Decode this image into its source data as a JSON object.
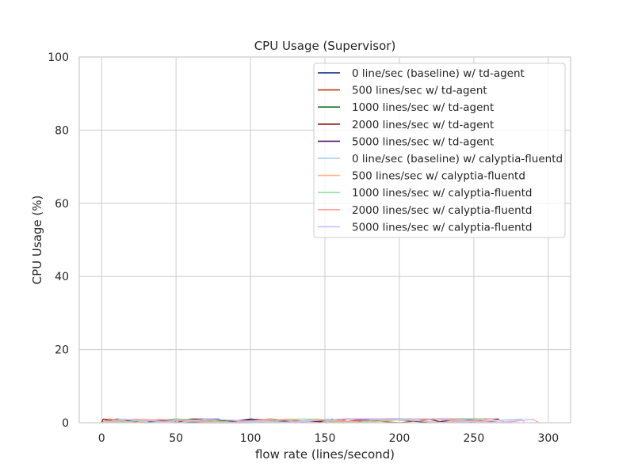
{
  "chart_data": {
    "type": "line",
    "title": "CPU Usage (Supervisor)",
    "xlabel": "flow rate (lines/second)",
    "ylabel": "CPU Usage (%)",
    "xlim": [
      -15,
      315
    ],
    "ylim": [
      0,
      100
    ],
    "xticks": [
      0,
      50,
      100,
      150,
      200,
      250,
      300
    ],
    "yticks": [
      0,
      20,
      40,
      60,
      80,
      100
    ],
    "grid": true,
    "legend_position": "top-right",
    "series": [
      {
        "name": "0 line/sec (baseline) w/ td-agent",
        "color": "#001c7f",
        "x": [
          0,
          11,
          29,
          49,
          50,
          61,
          79,
          81,
          100,
          141,
          155,
          162,
          194,
          221,
          242,
          270
        ],
        "y": [
          0,
          1,
          0,
          1,
          0,
          1,
          1,
          0,
          1,
          0,
          1,
          0,
          1,
          0,
          1,
          0
        ]
      },
      {
        "name": "500 lines/sec w/ td-agent",
        "color": "#b1400d",
        "x": [
          0,
          5,
          55,
          100,
          112,
          156,
          165,
          200,
          222,
          256
        ],
        "y": [
          0,
          1,
          0,
          0,
          1,
          0,
          1,
          0,
          1,
          0
        ]
      },
      {
        "name": "1000 lines/sec w/ td-agent",
        "color": "#12711c",
        "x": [
          0,
          10,
          49,
          114,
          142,
          206,
          232,
          252,
          255
        ],
        "y": [
          0,
          1,
          0,
          1,
          0,
          1,
          1,
          1,
          0
        ]
      },
      {
        "name": "2000 lines/sec w/ td-agent",
        "color": "#8c0800",
        "x": [
          0,
          1,
          30,
          60,
          131,
          163,
          186,
          220,
          230,
          255
        ],
        "y": [
          0,
          1,
          0,
          1,
          0,
          1,
          1,
          1,
          0,
          1
        ]
      },
      {
        "name": "5000 lines/sec w/ td-agent",
        "color": "#591e71",
        "x": [
          0,
          51,
          80,
          100,
          151,
          187,
          227,
          267
        ],
        "y": [
          0,
          1,
          0,
          1,
          0,
          1,
          1,
          1
        ]
      },
      {
        "name": "0 line/sec (baseline) w/ calyptia-fluentd",
        "color": "#a1c9f4",
        "x": [
          0,
          16,
          32,
          73,
          116,
          152,
          172,
          184,
          190,
          233,
          282,
          284
        ],
        "y": [
          0,
          1,
          0,
          1,
          0,
          1,
          0,
          1,
          1,
          0,
          1,
          0
        ]
      },
      {
        "name": "500 lines/sec w/ calyptia-fluentd",
        "color": "#ffb482",
        "x": [
          0,
          6,
          22,
          39,
          84,
          124,
          146,
          178,
          204,
          225,
          262,
          275
        ],
        "y": [
          0,
          1,
          0,
          1,
          0,
          1,
          1,
          0,
          1,
          0,
          1,
          0
        ]
      },
      {
        "name": "1000 lines/sec w/ calyptia-fluentd",
        "color": "#8de5a1",
        "x": [
          0,
          53,
          94,
          137,
          171,
          209,
          223,
          257
        ],
        "y": [
          0,
          1,
          0,
          1,
          0,
          1,
          1,
          1
        ]
      },
      {
        "name": "2000 lines/sec w/ calyptia-fluentd",
        "color": "#ff9f9b",
        "x": [
          0,
          22,
          87,
          111,
          146,
          202,
          232,
          271,
          289,
          294
        ],
        "y": [
          0,
          1,
          0,
          1,
          0,
          1,
          1,
          0,
          1,
          0
        ]
      },
      {
        "name": "5000 lines/sec w/ calyptia-fluentd",
        "color": "#d0bbff",
        "x": [
          0,
          13,
          52,
          70,
          125,
          159,
          188,
          221,
          262,
          290
        ],
        "y": [
          0,
          1,
          0,
          1,
          0,
          1,
          1,
          1,
          0,
          1
        ]
      }
    ]
  }
}
